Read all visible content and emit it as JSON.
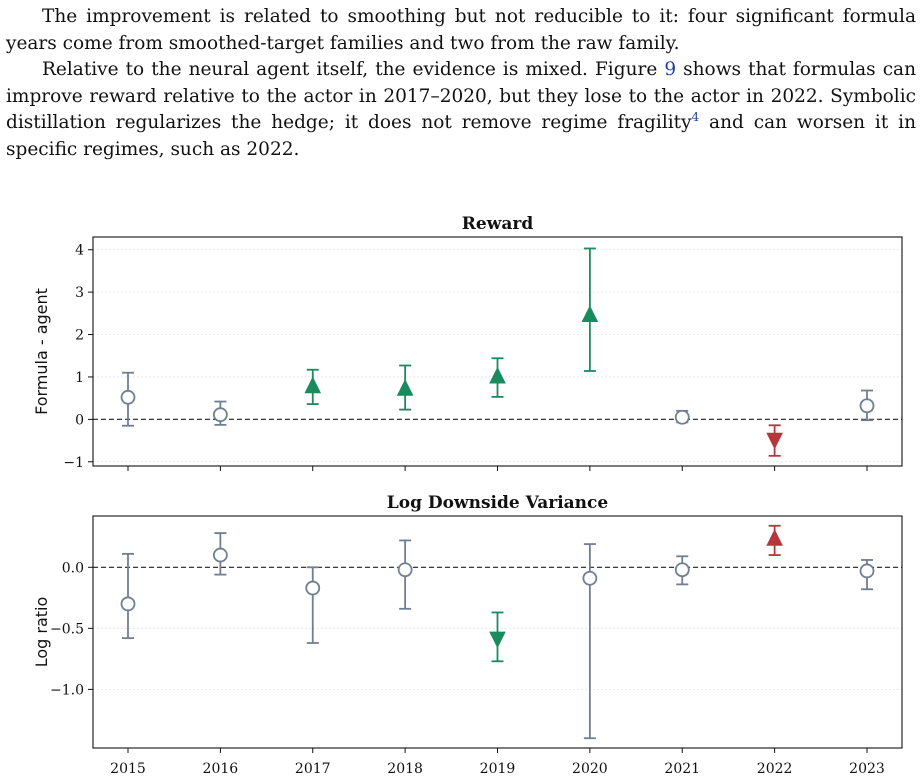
{
  "paragraphs": [
    {
      "p1": "The improvement is related to smoothing but not reducible to it: four significant formula years come from smoothed-target families and two from the raw family."
    },
    {
      "p2a": "Relative to the neural agent itself, the evidence is mixed. Figure ",
      "p2ref": "9",
      "p2b": " shows that formulas can improve reward relative to the actor in 2017–2020, but they lose to the actor in 2022. Symbolic distillation regularizes the hedge; it does not remove regime fragility",
      "p2fn": "4",
      "p2c": " and can worsen it in specific regimes, such as 2022."
    }
  ],
  "colors": {
    "neutral": "#6f7f91",
    "better": "#1a8a5f",
    "worse": "#b5373b"
  },
  "chart_data": [
    {
      "type": "scatter",
      "title": "Reward",
      "ylabel": "Formula - agent",
      "xlabel": "",
      "x": [
        "2015",
        "2016",
        "2017",
        "2018",
        "2019",
        "2020",
        "2021",
        "2022",
        "2023"
      ],
      "ylim": [
        -1.1,
        4.3
      ],
      "yticks": [
        -1,
        0,
        1,
        2,
        3,
        4
      ],
      "ytick_labels": [
        "−1",
        "0",
        "1",
        "2",
        "3",
        "4"
      ],
      "reference_line": 0,
      "show_x_tick_labels": false,
      "points": [
        {
          "y": 0.52,
          "lo": -0.15,
          "hi": 1.1,
          "marker": "circle",
          "status": "neutral"
        },
        {
          "y": 0.11,
          "lo": -0.13,
          "hi": 0.42,
          "marker": "circle",
          "status": "neutral"
        },
        {
          "y": 0.77,
          "lo": 0.36,
          "hi": 1.17,
          "marker": "triangle-up",
          "status": "better"
        },
        {
          "y": 0.71,
          "lo": 0.23,
          "hi": 1.27,
          "marker": "triangle-up",
          "status": "better"
        },
        {
          "y": 1.0,
          "lo": 0.53,
          "hi": 1.44,
          "marker": "triangle-up",
          "status": "better"
        },
        {
          "y": 2.45,
          "lo": 1.14,
          "hi": 4.03,
          "marker": "triangle-up",
          "status": "better"
        },
        {
          "y": 0.05,
          "lo": -0.07,
          "hi": 0.2,
          "marker": "circle",
          "status": "neutral"
        },
        {
          "y": -0.47,
          "lo": -0.86,
          "hi": -0.14,
          "marker": "triangle-down",
          "status": "worse"
        },
        {
          "y": 0.32,
          "lo": -0.02,
          "hi": 0.68,
          "marker": "circle",
          "status": "neutral"
        }
      ]
    },
    {
      "type": "scatter",
      "title": "Log Downside Variance",
      "ylabel": "Log ratio",
      "xlabel": "",
      "x": [
        "2015",
        "2016",
        "2017",
        "2018",
        "2019",
        "2020",
        "2021",
        "2022",
        "2023"
      ],
      "ylim": [
        -1.48,
        0.42
      ],
      "yticks": [
        0.0,
        -0.5,
        -1.0
      ],
      "ytick_labels": [
        "0.0",
        "−0.5",
        "−1.0"
      ],
      "reference_line": 0,
      "show_x_tick_labels": true,
      "points": [
        {
          "y": -0.3,
          "lo": -0.58,
          "hi": 0.11,
          "marker": "circle",
          "status": "neutral"
        },
        {
          "y": 0.1,
          "lo": -0.06,
          "hi": 0.28,
          "marker": "circle",
          "status": "neutral"
        },
        {
          "y": -0.17,
          "lo": -0.62,
          "hi": 0.0,
          "marker": "circle",
          "status": "neutral"
        },
        {
          "y": -0.02,
          "lo": -0.34,
          "hi": 0.22,
          "marker": "circle",
          "status": "neutral"
        },
        {
          "y": -0.58,
          "lo": -0.77,
          "hi": -0.37,
          "marker": "triangle-down",
          "status": "better"
        },
        {
          "y": -0.09,
          "lo": -1.4,
          "hi": 0.19,
          "marker": "circle",
          "status": "neutral"
        },
        {
          "y": -0.02,
          "lo": -0.14,
          "hi": 0.09,
          "marker": "circle",
          "status": "neutral"
        },
        {
          "y": 0.23,
          "lo": 0.1,
          "hi": 0.34,
          "marker": "triangle-up",
          "status": "worse"
        },
        {
          "y": -0.03,
          "lo": -0.18,
          "hi": 0.06,
          "marker": "circle",
          "status": "neutral"
        }
      ]
    }
  ]
}
